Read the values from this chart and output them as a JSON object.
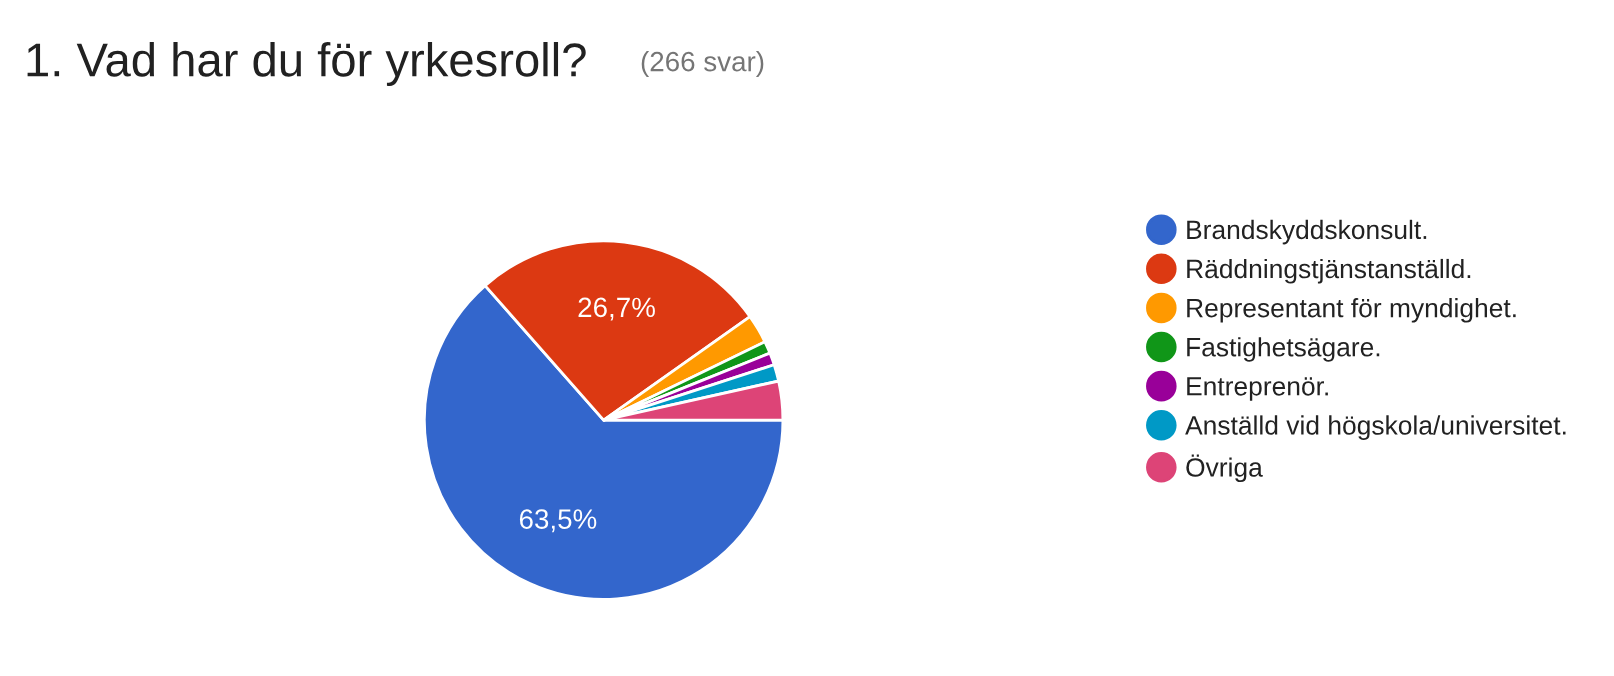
{
  "chart_data": {
    "type": "pie",
    "title": "1. Vad har du för yrkesroll?",
    "subtitle": "(266 svar)",
    "categories": [
      "Brandskyddskonsult.",
      "Räddningstjänstanställd.",
      "Representant för myndighet.",
      "Fastighetsägare.",
      "Entreprenör.",
      "Anställd vid högskola/universitet.",
      "Övriga"
    ],
    "values": [
      63.5,
      26.7,
      2.6,
      1.1,
      1.1,
      1.5,
      3.5
    ],
    "colors": [
      "#3366cc",
      "#dc3912",
      "#ff9900",
      "#109618",
      "#990099",
      "#0099c6",
      "#dd4477"
    ],
    "value_labels": [
      "63,5%",
      "26,7%",
      null,
      null,
      null,
      null,
      null
    ],
    "legend": "right"
  }
}
